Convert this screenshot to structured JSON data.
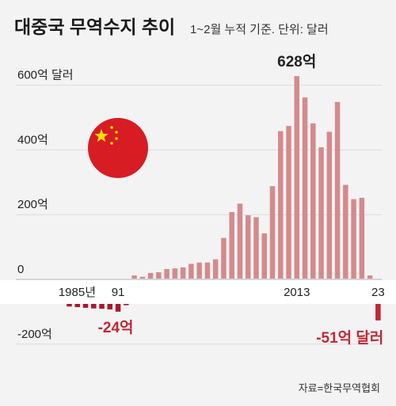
{
  "chart_data": {
    "type": "bar",
    "title": "대중국 무역수지 추이",
    "subtitle": "1~2월 누적 기준. 단위: 달러",
    "y_tick_labels": [
      {
        "value": 600,
        "label": "600억 달러"
      },
      {
        "value": 400,
        "label": "400억"
      },
      {
        "value": 200,
        "label": "200억"
      },
      {
        "value": 0,
        "label": "0"
      },
      {
        "value": -200,
        "label": "-200억"
      }
    ],
    "x_tick_labels": [
      {
        "year": 1985,
        "label": "1985년"
      },
      {
        "year": 1991,
        "label": "91"
      },
      {
        "year": 2013,
        "label": "2013"
      },
      {
        "year": 2023,
        "label": "23"
      }
    ],
    "ylim": [
      -200,
      650
    ],
    "years": [
      1985,
      1986,
      1987,
      1988,
      1989,
      1990,
      1991,
      1992,
      1993,
      1994,
      1995,
      1996,
      1997,
      1998,
      1999,
      2000,
      2001,
      2002,
      2003,
      2004,
      2005,
      2006,
      2007,
      2008,
      2009,
      2010,
      2011,
      2012,
      2013,
      2014,
      2015,
      2016,
      2017,
      2018,
      2019,
      2020,
      2021,
      2022,
      2023
    ],
    "values": [
      -8,
      -10,
      -12,
      -14,
      -15,
      -17,
      -24,
      -4,
      12,
      8,
      20,
      22,
      32,
      34,
      37,
      48,
      52,
      52,
      62,
      128,
      208,
      234,
      198,
      192,
      142,
      288,
      458,
      474,
      628,
      562,
      482,
      408,
      456,
      548,
      292,
      248,
      252,
      12,
      -51
    ],
    "annotations": [
      {
        "year": 2013,
        "text": "628억"
      },
      {
        "year": 1991,
        "text": "-24억"
      },
      {
        "year": 2023,
        "text": "-51억 달러"
      }
    ],
    "colors": {
      "positive": "#d48a8d",
      "negative": "#a8182c",
      "highlight": "#c02835",
      "flag": "#d81c23",
      "star": "#ffde00"
    },
    "source": "자료=한국무역협회"
  }
}
